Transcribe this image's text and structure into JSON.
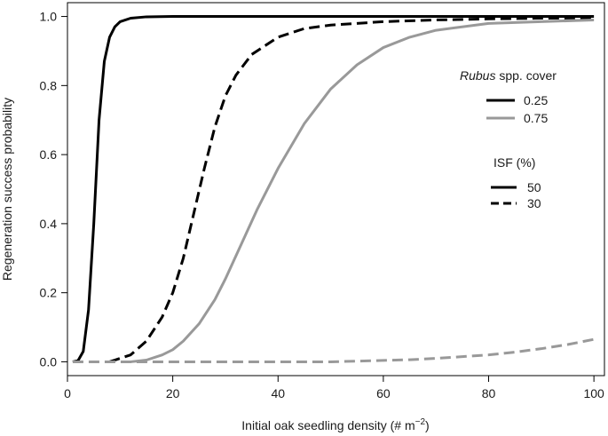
{
  "chart_data": {
    "type": "line",
    "xlabel_prefix": "Initial oak seedling density (# m",
    "xlabel_sup": "−2",
    "xlabel_suffix": ")",
    "ylabel": "Regeneration success probability",
    "xlim": [
      0,
      102
    ],
    "ylim": [
      -0.04,
      1.04
    ],
    "xticks": [
      0,
      20,
      40,
      60,
      80,
      100
    ],
    "yticks": [
      0.0,
      0.2,
      0.4,
      0.6,
      0.8,
      1.0
    ],
    "xtick_labels": [
      "0",
      "20",
      "40",
      "60",
      "80",
      "100"
    ],
    "ytick_labels": [
      "0.0",
      "0.2",
      "0.4",
      "0.6",
      "0.8",
      "1.0"
    ],
    "legend_position": "right",
    "legend_rubus": {
      "title_italic": "Rubus",
      "title_rest": " spp. cover",
      "entries": [
        {
          "label": "0.25",
          "color": "#000000"
        },
        {
          "label": "0.75",
          "color": "#999999"
        }
      ]
    },
    "legend_isf": {
      "title": "ISF (%)",
      "entries": [
        {
          "label": "50",
          "dash": "solid"
        },
        {
          "label": "30",
          "dash": "dashed"
        }
      ]
    },
    "series": [
      {
        "rubus": "0.25",
        "isf": "50",
        "color": "#000000",
        "dash": "solid",
        "x": [
          1,
          2,
          3,
          4,
          5,
          6,
          7,
          8,
          9,
          10,
          12,
          15,
          20,
          100
        ],
        "y": [
          0.0,
          0.003,
          0.03,
          0.15,
          0.4,
          0.7,
          0.87,
          0.94,
          0.97,
          0.985,
          0.995,
          0.999,
          1.0,
          1.0
        ]
      },
      {
        "rubus": "0.25",
        "isf": "30",
        "color": "#000000",
        "dash": "dashed",
        "x": [
          8,
          12,
          15,
          18,
          20,
          22,
          24,
          26,
          28,
          30,
          32,
          35,
          40,
          45,
          50,
          60,
          70,
          80,
          90,
          100
        ],
        "y": [
          0.0,
          0.02,
          0.06,
          0.13,
          0.2,
          0.3,
          0.43,
          0.56,
          0.68,
          0.77,
          0.83,
          0.89,
          0.94,
          0.965,
          0.975,
          0.985,
          0.99,
          0.993,
          0.995,
          0.996
        ]
      },
      {
        "rubus": "0.75",
        "isf": "50",
        "color": "#999999",
        "dash": "solid",
        "x": [
          12,
          15,
          18,
          20,
          22,
          25,
          28,
          30,
          33,
          36,
          40,
          45,
          50,
          55,
          60,
          65,
          70,
          80,
          90,
          100
        ],
        "y": [
          0.0,
          0.005,
          0.02,
          0.035,
          0.06,
          0.11,
          0.18,
          0.24,
          0.34,
          0.44,
          0.56,
          0.69,
          0.79,
          0.86,
          0.91,
          0.94,
          0.96,
          0.98,
          0.985,
          0.99
        ]
      },
      {
        "rubus": "0.75",
        "isf": "30",
        "color": "#999999",
        "dash": "dashed",
        "x": [
          1,
          50,
          55,
          60,
          65,
          70,
          75,
          80,
          85,
          90,
          95,
          100
        ],
        "y": [
          0.0,
          0.0,
          0.002,
          0.004,
          0.006,
          0.01,
          0.015,
          0.02,
          0.028,
          0.038,
          0.05,
          0.065
        ]
      }
    ]
  }
}
